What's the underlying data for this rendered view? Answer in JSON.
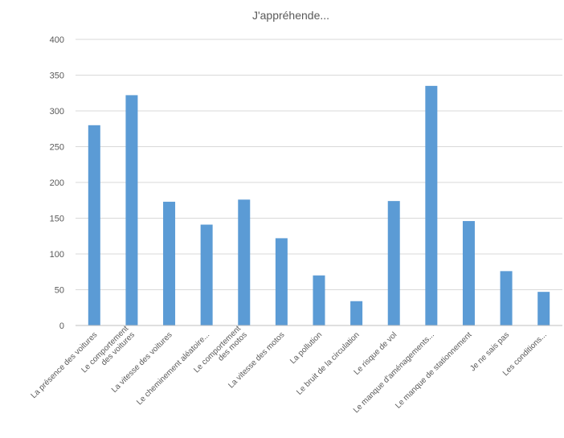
{
  "chart_data": {
    "type": "bar",
    "title": "J'appréhende...",
    "xlabel": "",
    "ylabel": "",
    "ylim": [
      0,
      400
    ],
    "yticks": [
      0,
      50,
      100,
      150,
      200,
      250,
      300,
      350,
      400
    ],
    "grid": true,
    "legend": "none",
    "bar_color": "#5b9bd5",
    "categories": [
      {
        "label": "La présence des voitures",
        "value": 280
      },
      {
        "label": "Le comportement\ndes voitures",
        "value": 322
      },
      {
        "label": "La vitesse des voitures",
        "value": 173
      },
      {
        "label": "Le cheminement aléatoire...",
        "value": 141
      },
      {
        "label": "Le comportement\ndes motos",
        "value": 176
      },
      {
        "label": "La vitesse des motos",
        "value": 122
      },
      {
        "label": "La pollution",
        "value": 70
      },
      {
        "label": "Le bruit de la circulation",
        "value": 34
      },
      {
        "label": "Le risque de vol",
        "value": 174
      },
      {
        "label": "Le manque d'aménagements...",
        "value": 335
      },
      {
        "label": "Le manque de stationnement",
        "value": 146
      },
      {
        "label": "Je ne sais pas",
        "value": 76
      },
      {
        "label": "Les conditions...",
        "value": 47
      }
    ]
  }
}
